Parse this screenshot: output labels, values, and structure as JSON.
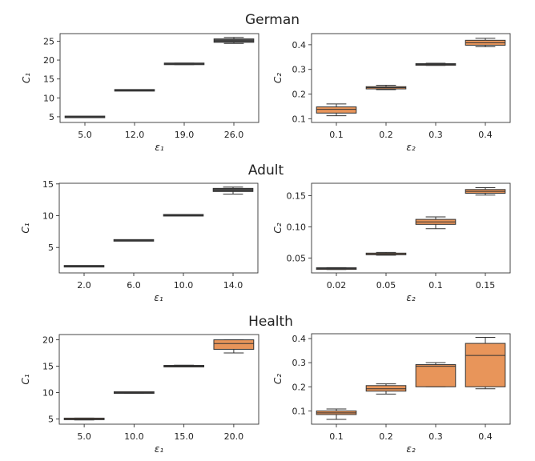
{
  "rows": [
    {
      "title": "German",
      "left": {
        "type": "box",
        "categories": [
          "5.0",
          "12.0",
          "19.0",
          "26.0"
        ],
        "xlabel": "ε₁",
        "ylabel": "C₁",
        "ylim": [
          3.5,
          27.0
        ],
        "yticks": [
          5,
          10,
          15,
          20,
          25
        ],
        "ytick_labels": [
          "5",
          "10",
          "15",
          "20",
          "25"
        ],
        "color": "#4f4f4f",
        "boxes": [
          {
            "whislo": 4.9,
            "q1": 4.93,
            "med": 4.97,
            "q3": 5.02,
            "whishi": 5.05
          },
          {
            "whislo": 11.9,
            "q1": 11.95,
            "med": 12.0,
            "q3": 12.05,
            "whishi": 12.1
          },
          {
            "whislo": 18.8,
            "q1": 18.9,
            "med": 19.0,
            "q3": 19.1,
            "whishi": 19.2
          },
          {
            "whislo": 24.4,
            "q1": 24.7,
            "med": 25.1,
            "q3": 25.6,
            "whishi": 26.0
          }
        ]
      },
      "right": {
        "type": "box",
        "categories": [
          "0.1",
          "0.2",
          "0.3",
          "0.4"
        ],
        "xlabel": "ε₂",
        "ylabel": "C₂",
        "ylim": [
          0.085,
          0.445
        ],
        "yticks": [
          0.1,
          0.2,
          0.3,
          0.4
        ],
        "ytick_labels": [
          "0.1",
          "0.2",
          "0.3",
          "0.4"
        ],
        "color": "#e8955a",
        "boxes": [
          {
            "whislo": 0.112,
            "q1": 0.123,
            "med": 0.138,
            "q3": 0.148,
            "whishi": 0.16
          },
          {
            "whislo": 0.218,
            "q1": 0.221,
            "med": 0.226,
            "q3": 0.23,
            "whishi": 0.236
          },
          {
            "whislo": 0.316,
            "q1": 0.318,
            "med": 0.32,
            "q3": 0.322,
            "whishi": 0.325
          },
          {
            "whislo": 0.392,
            "q1": 0.398,
            "med": 0.408,
            "q3": 0.418,
            "whishi": 0.426
          }
        ]
      }
    },
    {
      "title": "Adult",
      "left": {
        "type": "box",
        "categories": [
          "2.0",
          "6.0",
          "10.0",
          "14.0"
        ],
        "xlabel": "ε₁",
        "ylabel": "C₁",
        "ylim": [
          1.0,
          15.1
        ],
        "yticks": [
          5,
          10,
          15
        ],
        "ytick_labels": [
          "5",
          "10",
          "15"
        ],
        "color": "#4f4f4f",
        "boxes": [
          {
            "whislo": 2.0,
            "q1": 2.02,
            "med": 2.05,
            "q3": 2.08,
            "whishi": 2.1
          },
          {
            "whislo": 6.05,
            "q1": 6.08,
            "med": 6.12,
            "q3": 6.16,
            "whishi": 6.2
          },
          {
            "whislo": 10.0,
            "q1": 10.03,
            "med": 10.07,
            "q3": 10.12,
            "whishi": 10.15
          },
          {
            "whislo": 13.4,
            "q1": 13.8,
            "med": 14.05,
            "q3": 14.3,
            "whishi": 14.5
          }
        ]
      },
      "right": {
        "type": "box",
        "categories": [
          "0.02",
          "0.05",
          "0.1",
          "0.15"
        ],
        "xlabel": "ε₂",
        "ylabel": "C₂",
        "ylim": [
          0.026,
          0.17
        ],
        "yticks": [
          0.05,
          0.1,
          0.15
        ],
        "ytick_labels": [
          "0.05",
          "0.10",
          "0.15"
        ],
        "color": "#e8955a",
        "boxes": [
          {
            "whislo": 0.0315,
            "q1": 0.0322,
            "med": 0.033,
            "q3": 0.0338,
            "whishi": 0.0345
          },
          {
            "whislo": 0.0545,
            "q1": 0.0555,
            "med": 0.0565,
            "q3": 0.0578,
            "whishi": 0.059
          },
          {
            "whislo": 0.097,
            "q1": 0.104,
            "med": 0.108,
            "q3": 0.112,
            "whishi": 0.116
          },
          {
            "whislo": 0.151,
            "q1": 0.154,
            "med": 0.157,
            "q3": 0.16,
            "whishi": 0.163
          }
        ]
      }
    },
    {
      "title": "Health",
      "left": {
        "type": "box",
        "categories": [
          "5.0",
          "10.0",
          "15.0",
          "20.0"
        ],
        "xlabel": "ε₁",
        "ylabel": "C₁",
        "ylim": [
          4.0,
          21.0
        ],
        "yticks": [
          5,
          10,
          15,
          20
        ],
        "ytick_labels": [
          "5",
          "10",
          "15",
          "20"
        ],
        "color": "#e8955a",
        "boxes": [
          {
            "whislo": 4.8,
            "q1": 4.92,
            "med": 5.0,
            "q3": 5.08,
            "whishi": 5.15
          },
          {
            "whislo": 9.85,
            "q1": 9.92,
            "med": 10.0,
            "q3": 10.08,
            "whishi": 10.15
          },
          {
            "whislo": 14.85,
            "q1": 14.92,
            "med": 15.0,
            "q3": 15.12,
            "whishi": 15.2
          },
          {
            "whislo": 17.5,
            "q1": 18.2,
            "med": 19.3,
            "q3": 20.0,
            "whishi": 20.0
          }
        ]
      },
      "right": {
        "type": "box",
        "categories": [
          "0.1",
          "0.2",
          "0.3",
          "0.4"
        ],
        "xlabel": "ε₂",
        "ylabel": "C₂",
        "ylim": [
          0.045,
          0.42
        ],
        "yticks": [
          0.1,
          0.2,
          0.3,
          0.4
        ],
        "ytick_labels": [
          "0.1",
          "0.2",
          "0.3",
          "0.4"
        ],
        "color": "#e8955a",
        "boxes": [
          {
            "whislo": 0.065,
            "q1": 0.085,
            "med": 0.092,
            "q3": 0.1,
            "whishi": 0.108
          },
          {
            "whislo": 0.17,
            "q1": 0.182,
            "med": 0.192,
            "q3": 0.205,
            "whishi": 0.212
          },
          {
            "whislo": 0.2,
            "q1": 0.2,
            "med": 0.285,
            "q3": 0.292,
            "whishi": 0.3
          },
          {
            "whislo": 0.192,
            "q1": 0.2,
            "med": 0.33,
            "q3": 0.38,
            "whishi": 0.405
          }
        ]
      }
    }
  ]
}
